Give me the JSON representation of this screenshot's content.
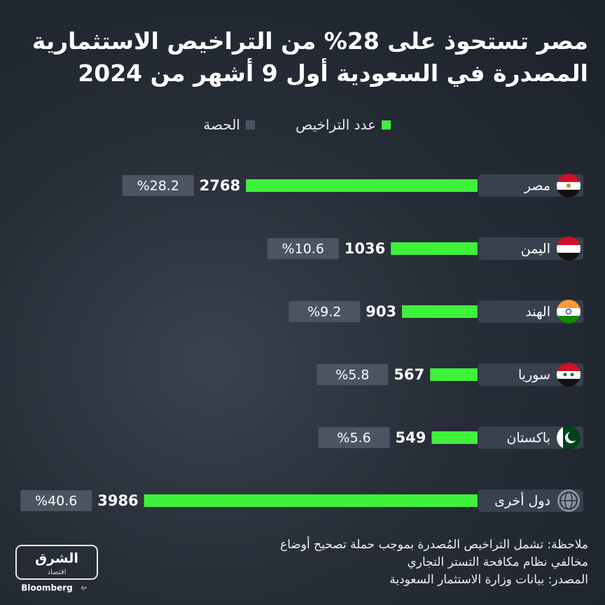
{
  "chart_data": {
    "type": "bar",
    "title": [
      "مصر تستحوذ على 28% من التراخيص الاستثمارية",
      "المصدرة في السعودية أول 9 أشهر من 2024"
    ],
    "categories": [
      "مصر",
      "اليمن",
      "الهند",
      "سوريا",
      "باكستان",
      "دول أخرى"
    ],
    "series": [
      {
        "name": "عدد التراخيص",
        "color": "#3ef23a",
        "values": [
          2768,
          1036,
          903,
          567,
          549,
          3986
        ]
      },
      {
        "name": "الحصة",
        "color": "#4b5562",
        "values": [
          28.2,
          10.6,
          9.2,
          5.8,
          5.6,
          40.6
        ],
        "value_labels": [
          "%28.2",
          "%10.6",
          "%9.2",
          "%5.8",
          "%5.6",
          "%40.6"
        ]
      }
    ],
    "note": [
      "ملاحظة: تشمل التراخيص المُصدرة بموجب حملة تصحيح أوضاع",
      "مخالفي نظام مكافحة التستر التجاري"
    ],
    "source": "المصدر: بيانات وزارة الاستثمار السعودية",
    "logo": {
      "brand": "الشرق",
      "section": "اقتصاد",
      "partner_prefix": "مع",
      "partner": "Bloomberg"
    }
  }
}
